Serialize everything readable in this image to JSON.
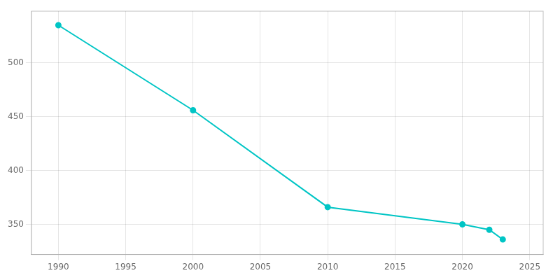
{
  "chart_data": {
    "type": "line",
    "x": [
      1990,
      2000,
      2010,
      2020,
      2022,
      2023
    ],
    "values": [
      535,
      456,
      366,
      350,
      345,
      336
    ],
    "color": "#00C5C5",
    "marker": "circle",
    "xlim": [
      1988,
      2026
    ],
    "xticks": [
      1990,
      1995,
      2000,
      2005,
      2010,
      2015,
      2020,
      2025
    ],
    "ylim": [
      322,
      548
    ],
    "yticks": [
      350,
      400,
      450,
      500
    ],
    "grid": true
  }
}
